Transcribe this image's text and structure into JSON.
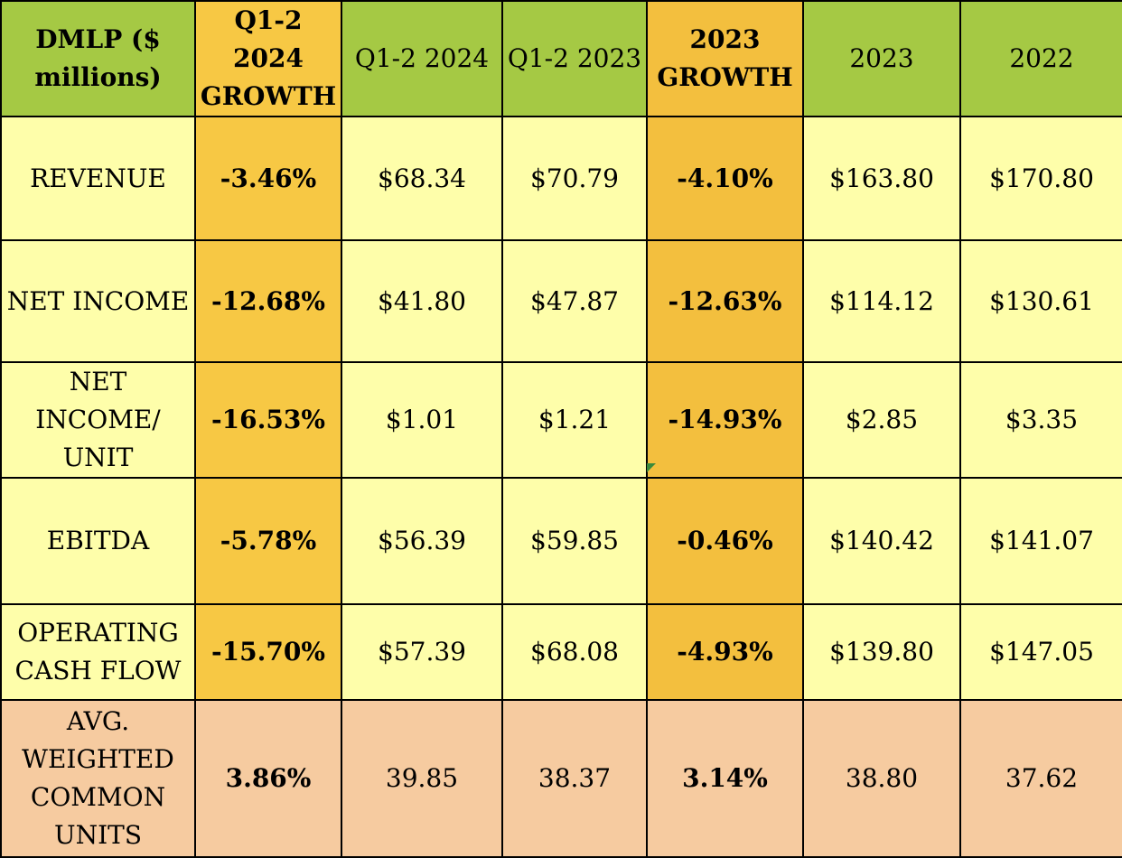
{
  "chart_data": {
    "type": "table",
    "columns": [
      "DMLP ($ millions)",
      "Q1-2 2024 GROWTH",
      "Q1-2 2024",
      "Q1-2 2023",
      "2023 GROWTH",
      "2023",
      "2022"
    ],
    "header_lines": [
      [
        "DMLP ($",
        "millions)"
      ],
      [
        "Q1-2 2024",
        "GROWTH"
      ],
      [
        "Q1-2 2024"
      ],
      [
        "Q1-2 2023"
      ],
      [
        "2023",
        "GROWTH"
      ],
      [
        "2023"
      ],
      [
        "2022"
      ]
    ],
    "rows": [
      {
        "label_lines": [
          "REVENUE"
        ],
        "cells": [
          "-3.46%",
          "$68.34",
          "$70.79",
          "-4.10%",
          "$163.80",
          "$170.80"
        ]
      },
      {
        "label_lines": [
          "NET INCOME"
        ],
        "cells": [
          "-12.68%",
          "$41.80",
          "$47.87",
          "-12.63%",
          "$114.12",
          "$130.61"
        ]
      },
      {
        "label_lines": [
          "NET INCOME/",
          "UNIT"
        ],
        "cells": [
          "-16.53%",
          "$1.01",
          "$1.21",
          "-14.93%",
          "$2.85",
          "$3.35"
        ]
      },
      {
        "label_lines": [
          "EBITDA"
        ],
        "cells": [
          "-5.78%",
          "$56.39",
          "$59.85",
          "-0.46%",
          "$140.42",
          "$141.07"
        ]
      },
      {
        "label_lines": [
          "OPERATING",
          "CASH FLOW"
        ],
        "cells": [
          "-15.70%",
          "$57.39",
          "$68.08",
          "-4.93%",
          "$139.80",
          "$147.05"
        ]
      },
      {
        "label_lines": [
          "AVG.",
          "WEIGHTED",
          "COMMON",
          "UNITS"
        ],
        "cells": [
          "3.86%",
          "39.85",
          "38.37",
          "3.14%",
          "38.80",
          "37.62"
        ]
      }
    ],
    "colors": {
      "header_green": "#a5c944",
      "growth_gold": "#f7c844",
      "growth_gold_alt": "#f3bf3e",
      "cell_yellow": "#fefeaa",
      "units_row_peach": "#f6cba0"
    }
  }
}
